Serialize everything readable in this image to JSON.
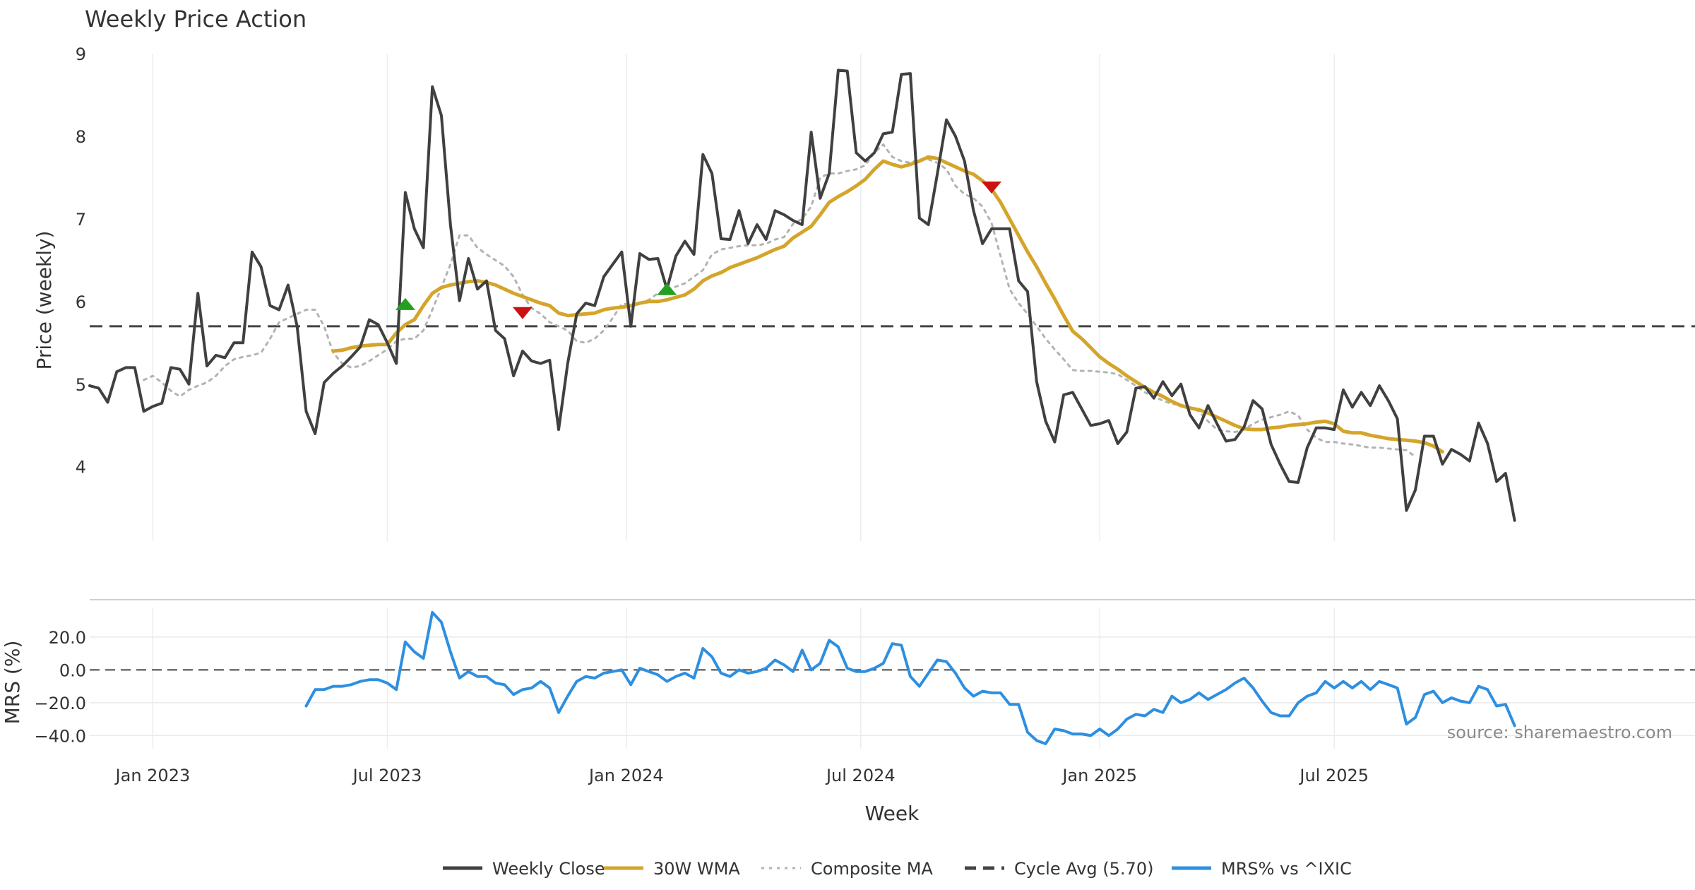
{
  "chart_data": {
    "type": "line",
    "title": "Weekly Price Action",
    "xlabel": "Week",
    "source": "source: sharemaestro.com",
    "x_ticks": [
      {
        "label": "Jan 2023",
        "week": 7
      },
      {
        "label": "Jul 2023",
        "week": 33
      },
      {
        "label": "Jan 2024",
        "week": 59.5
      },
      {
        "label": "Jul 2024",
        "week": 85.5
      },
      {
        "label": "Jan 2025",
        "week": 112
      },
      {
        "label": "Jul 2025",
        "week": 138
      }
    ],
    "colors": {
      "close": "#404040",
      "wma": "#d4a52a",
      "composite": "#b3b3b3",
      "cycle": "#444444",
      "mrs": "#2e8fe0",
      "buy": "#22a022",
      "sell": "#cc1111",
      "grid": "#e8eef2"
    },
    "price_panel": {
      "ylabel": "Price (weekly)",
      "ylim": [
        3.1,
        9
      ],
      "yticks": [
        4,
        5,
        6,
        7,
        8,
        9
      ],
      "cycle_avg": 5.7,
      "series": [
        {
          "name": "Weekly Close",
          "key": "close",
          "values": [
            4.98,
            4.95,
            4.78,
            5.15,
            5.2,
            5.2,
            4.67,
            4.73,
            4.77,
            5.2,
            5.18,
            5.0,
            6.1,
            5.22,
            5.35,
            5.32,
            5.5,
            5.5,
            6.6,
            6.42,
            5.95,
            5.9,
            6.2,
            5.7,
            4.67,
            4.4,
            5.02,
            5.13,
            5.22,
            5.33,
            5.45,
            5.78,
            5.72,
            5.5,
            5.25,
            7.32,
            6.88,
            6.65,
            8.6,
            8.25,
            6.93,
            6.01,
            6.52,
            6.15,
            6.25,
            5.65,
            5.55,
            5.1,
            5.4,
            5.28,
            5.25,
            5.29,
            4.45,
            5.25,
            5.85,
            5.98,
            5.95,
            6.3,
            6.45,
            6.6,
            5.7,
            6.58,
            6.51,
            6.52,
            6.15,
            6.55,
            6.73,
            6.57,
            7.78,
            7.55,
            6.76,
            6.75,
            7.1,
            6.7,
            6.93,
            6.75,
            7.1,
            7.05,
            6.98,
            6.93,
            8.05,
            7.25,
            7.55,
            8.8,
            8.79,
            7.8,
            7.7,
            7.8,
            8.03,
            8.05,
            8.75,
            8.76,
            7.01,
            6.93,
            7.55,
            8.2,
            8.0,
            7.7,
            7.1,
            6.7,
            6.88,
            6.88,
            6.88,
            6.25,
            6.12,
            5.03,
            4.55,
            4.3,
            4.87,
            4.9,
            4.7,
            4.5,
            4.52,
            4.56,
            4.28,
            4.42,
            4.95,
            4.97,
            4.83,
            5.03,
            4.86,
            5.0,
            4.63,
            4.47,
            4.74,
            4.52,
            4.31,
            4.33,
            4.48,
            4.8,
            4.7,
            4.27,
            4.03,
            3.82,
            3.81,
            4.23,
            4.47,
            4.47,
            4.45,
            4.93,
            4.72,
            4.9,
            4.74,
            4.98,
            4.8,
            4.58,
            3.47,
            3.72,
            4.37,
            4.37,
            4.03,
            4.21,
            4.15,
            4.07,
            4.53,
            4.28,
            3.82,
            3.92,
            3.35
          ]
        },
        {
          "name": "30W WMA",
          "key": "wma",
          "start": 27,
          "values": [
            5.4,
            5.41,
            5.44,
            5.46,
            5.47,
            5.48,
            5.48,
            5.62,
            5.72,
            5.78,
            5.95,
            6.1,
            6.17,
            6.2,
            6.22,
            6.24,
            6.25,
            6.23,
            6.2,
            6.15,
            6.1,
            6.06,
            6.02,
            5.98,
            5.95,
            5.86,
            5.83,
            5.84,
            5.85,
            5.86,
            5.9,
            5.92,
            5.93,
            5.95,
            5.98,
            6.0,
            6.0,
            6.02,
            6.05,
            6.08,
            6.15,
            6.25,
            6.31,
            6.35,
            6.41,
            6.45,
            6.49,
            6.53,
            6.58,
            6.63,
            6.67,
            6.77,
            6.84,
            6.91,
            7.05,
            7.2,
            7.27,
            7.33,
            7.4,
            7.48,
            7.6,
            7.7,
            7.66,
            7.63,
            7.66,
            7.7,
            7.75,
            7.73,
            7.68,
            7.63,
            7.58,
            7.54,
            7.46,
            7.36,
            7.2,
            7.0,
            6.8,
            6.6,
            6.42,
            6.22,
            6.03,
            5.83,
            5.64,
            5.55,
            5.44,
            5.33,
            5.25,
            5.18,
            5.1,
            5.03,
            4.96,
            4.9,
            4.85,
            4.79,
            4.74,
            4.71,
            4.69,
            4.65,
            4.6,
            4.55,
            4.5,
            4.46,
            4.45,
            4.45,
            4.47,
            4.48,
            4.5,
            4.51,
            4.52,
            4.54,
            4.55,
            4.52,
            4.43,
            4.41,
            4.41,
            4.38,
            4.36,
            4.34,
            4.33,
            4.32,
            4.31,
            4.29,
            4.25,
            4.18
          ]
        },
        {
          "name": "Composite MA",
          "key": "composite",
          "start": 6,
          "values": [
            5.05,
            5.1,
            5.02,
            4.92,
            4.85,
            4.93,
            4.98,
            5.02,
            5.1,
            5.22,
            5.3,
            5.33,
            5.35,
            5.38,
            5.55,
            5.75,
            5.8,
            5.85,
            5.9,
            5.9,
            5.7,
            5.38,
            5.25,
            5.2,
            5.22,
            5.28,
            5.35,
            5.42,
            5.52,
            5.55,
            5.55,
            5.65,
            5.9,
            6.17,
            6.45,
            6.8,
            6.8,
            6.65,
            6.57,
            6.5,
            6.43,
            6.3,
            6.08,
            5.92,
            5.85,
            5.75,
            5.7,
            5.65,
            5.52,
            5.5,
            5.55,
            5.65,
            5.8,
            5.97,
            5.97,
            5.97,
            6.02,
            6.1,
            6.15,
            6.18,
            6.22,
            6.3,
            6.38,
            6.57,
            6.63,
            6.65,
            6.67,
            6.68,
            6.68,
            6.7,
            6.75,
            6.78,
            6.94,
            7.0,
            7.15,
            7.5,
            7.55,
            7.55,
            7.58,
            7.6,
            7.65,
            7.8,
            7.9,
            7.75,
            7.7,
            7.68,
            7.72,
            7.72,
            7.68,
            7.6,
            7.4,
            7.3,
            7.25,
            7.15,
            6.95,
            6.55,
            6.15,
            5.98,
            5.85,
            5.7,
            5.55,
            5.42,
            5.3,
            5.17,
            5.16,
            5.16,
            5.15,
            5.14,
            5.12,
            5.05,
            4.98,
            4.9,
            4.85,
            4.8,
            4.76,
            4.75,
            4.72,
            4.67,
            4.55,
            4.45,
            4.43,
            4.42,
            4.45,
            4.52,
            4.57,
            4.6,
            4.63,
            4.67,
            4.62,
            4.45,
            4.35,
            4.3,
            4.3,
            4.28,
            4.27,
            4.25,
            4.23,
            4.23,
            4.22,
            4.21,
            4.2,
            4.12
          ]
        }
      ],
      "signals": [
        {
          "type": "buy",
          "week": 35,
          "price": 5.97
        },
        {
          "type": "sell",
          "week": 48,
          "price": 5.86
        },
        {
          "type": "buy",
          "week": 64,
          "price": 6.15
        },
        {
          "type": "sell",
          "week": 100,
          "price": 7.38
        }
      ]
    },
    "mrs_panel": {
      "ylabel": "MRS (%)",
      "ylim": [
        -48,
        38
      ],
      "yticks": [
        20.0,
        0.0,
        -20.0,
        -40.0
      ],
      "ytick_labels": [
        "20.0",
        "0.0",
        "−20.0",
        "−40.0"
      ],
      "zero_line": 0,
      "series": [
        {
          "name": "MRS% vs ^IXIC",
          "key": "mrs",
          "start": 24,
          "values": [
            -22,
            -12,
            -12,
            -10,
            -10,
            -9,
            -7,
            -6,
            -6,
            -8,
            -12,
            17,
            11,
            7,
            35,
            29,
            11,
            -5,
            -1,
            -4,
            -4,
            -8,
            -9,
            -15,
            -12,
            -11,
            -7,
            -11,
            -26,
            -16,
            -7,
            -4,
            -5,
            -2,
            -1,
            0,
            -9,
            1,
            -1,
            -3,
            -7,
            -4,
            -2,
            -5,
            13,
            8,
            -2,
            -4,
            0,
            -2,
            -1,
            1,
            6,
            3,
            -1,
            12,
            0,
            4,
            18,
            14,
            1,
            -1,
            -1,
            1,
            4,
            16,
            15,
            -4,
            -10,
            -2,
            6,
            5,
            -2,
            -11,
            -16,
            -13,
            -14,
            -14,
            -21,
            -21,
            -38,
            -43,
            -45,
            -36,
            -37,
            -39,
            -39,
            -40,
            -36,
            -40,
            -36,
            -30,
            -27,
            -28,
            -24,
            -26,
            -16,
            -20,
            -18,
            -14,
            -18,
            -15,
            -12,
            -8,
            -5,
            -11,
            -19,
            -26,
            -28,
            -28,
            -20,
            -16,
            -14,
            -7,
            -11,
            -7,
            -11,
            -7,
            -12,
            -7,
            -9,
            -11,
            -33,
            -29,
            -15,
            -13,
            -20,
            -17,
            -19,
            -20,
            -10,
            -12,
            -22,
            -21,
            -34
          ]
        }
      ]
    },
    "legend": [
      {
        "label": "Weekly Close",
        "key": "close",
        "style": "solid"
      },
      {
        "label": "30W WMA",
        "key": "wma",
        "style": "solid"
      },
      {
        "label": "Composite MA",
        "key": "composite",
        "style": "dotted"
      },
      {
        "label": "Cycle Avg (5.70)",
        "key": "cycle",
        "style": "dashed"
      },
      {
        "label": "MRS% vs ^IXIC",
        "key": "mrs",
        "style": "solid"
      }
    ]
  }
}
